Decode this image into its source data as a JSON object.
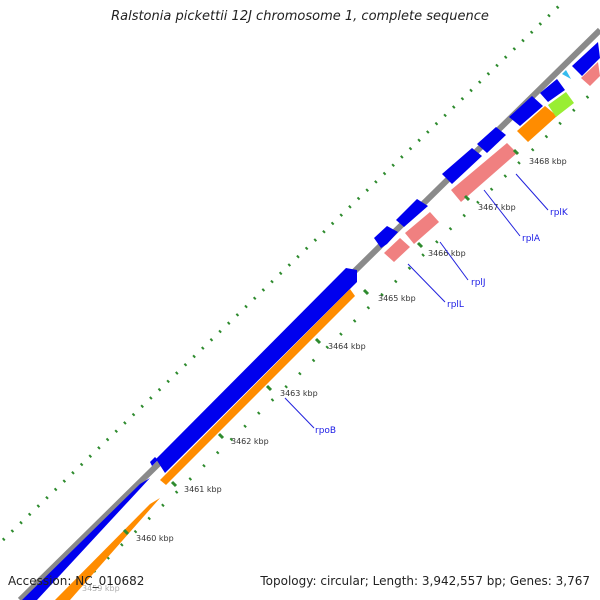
{
  "title": "Ralstonia pickettii 12J chromosome 1, complete sequence",
  "footer": {
    "accession": "Accession: NC_010682",
    "stats": "Topology: circular; Length: 3,942,557 bp; Genes: 3,767"
  },
  "colors": {
    "backbone": "#8a8a8a",
    "forward_cds": "#0000ee",
    "gene": "#ff8c00",
    "rrna_gene": "#f08080",
    "trna": "#99ee33",
    "misc": "#33bbee",
    "gc_dots": "#2e8b2e",
    "label_line": "#2222dd"
  },
  "tick_labels": [
    "3460 kbp",
    "3461 kbp",
    "3462 kbp",
    "3463 kbp",
    "3464 kbp",
    "3465 kbp",
    "3466 kbp",
    "3467 kbp",
    "3468 kbp"
  ],
  "gene_labels": [
    "rpoB",
    "rplL",
    "rplJ",
    "rplA",
    "rplK"
  ],
  "faded_label": "3459 kbp"
}
